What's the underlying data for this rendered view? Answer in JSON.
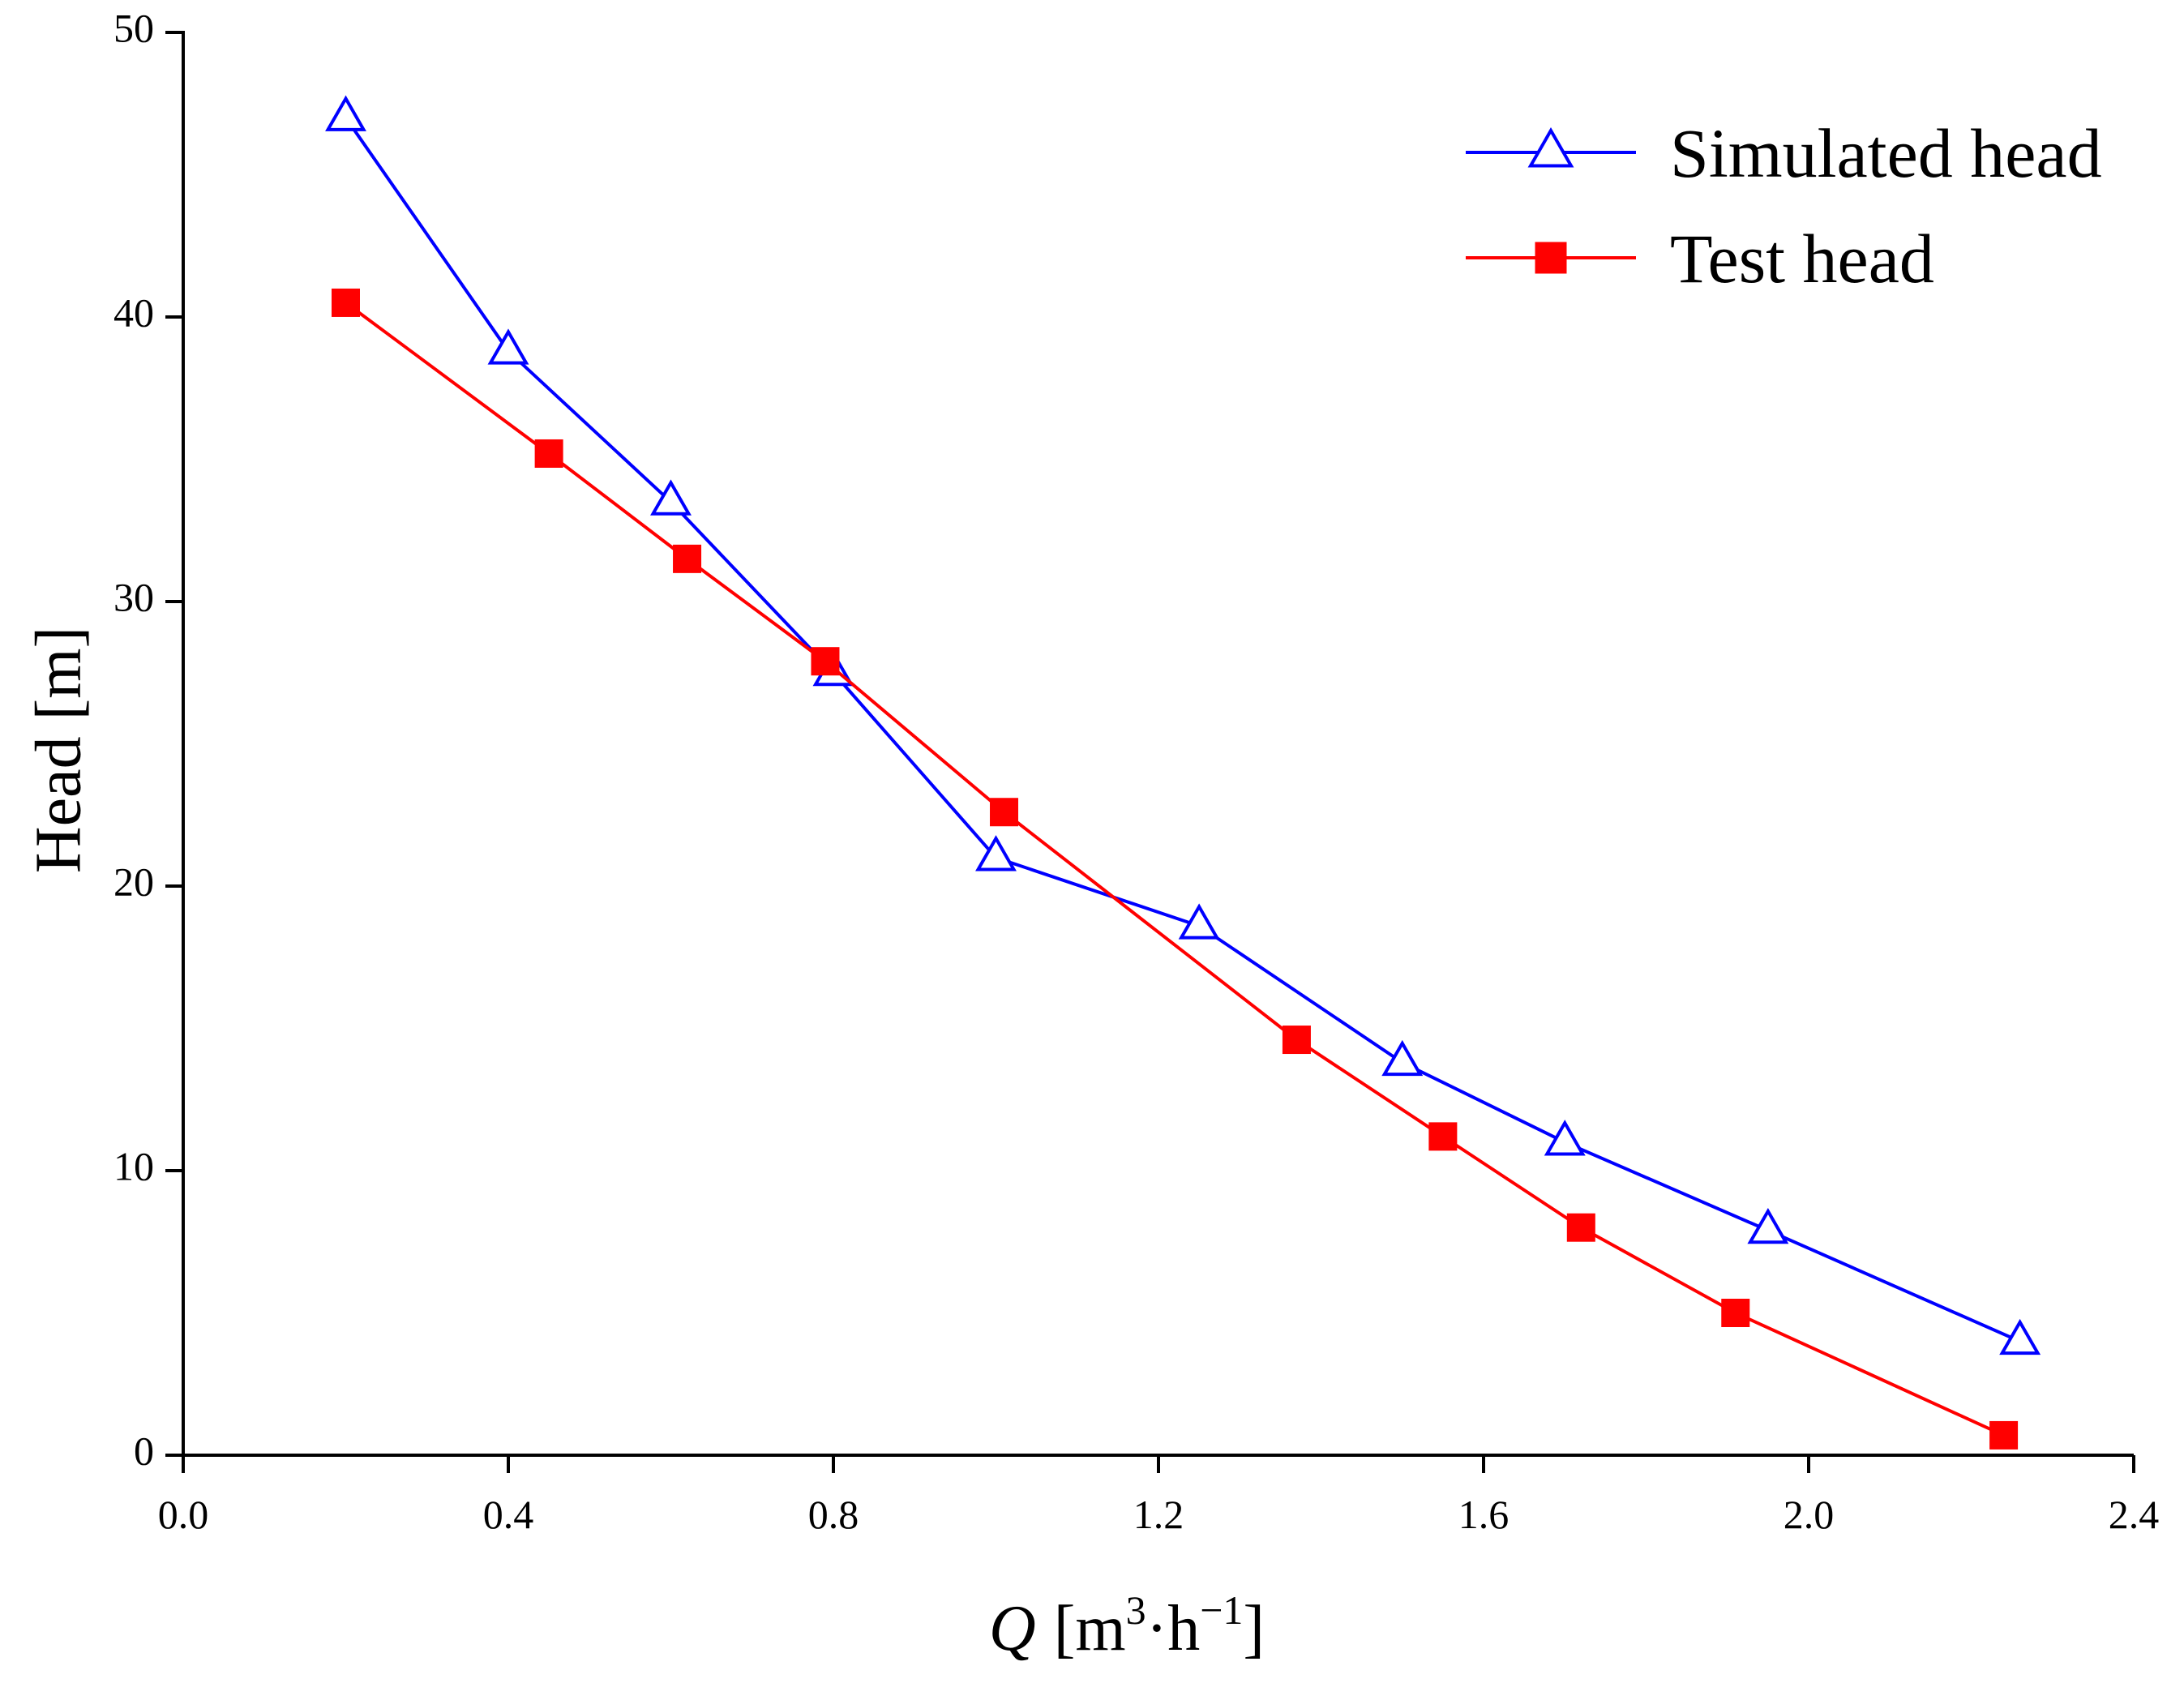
{
  "chart_data": {
    "type": "line",
    "title": "",
    "xlabel_var": "Q",
    "xlabel_unit_open": "[m",
    "xlabel_unit_sup1": "3",
    "xlabel_unit_mid": "·h",
    "xlabel_unit_sup2": "−1",
    "xlabel_unit_close": "]",
    "ylabel": "Head [m]",
    "xlim": [
      0.0,
      2.4
    ],
    "ylim": [
      0,
      50
    ],
    "xticks": [
      "0.0",
      "0.4",
      "0.8",
      "1.2",
      "1.6",
      "2.0",
      "2.4"
    ],
    "yticks": [
      "0",
      "10",
      "20",
      "30",
      "40",
      "50"
    ],
    "legend_position": "top-right",
    "series": [
      {
        "name": "Simulated head",
        "color": "#0000ff",
        "marker": "open-triangle",
        "x": [
          0.2,
          0.4,
          0.6,
          0.8,
          1.0,
          1.25,
          1.5,
          1.7,
          1.95,
          2.26
        ],
        "y": [
          47.0,
          38.8,
          33.5,
          27.5,
          21.0,
          18.6,
          13.8,
          11.0,
          7.9,
          4.0
        ]
      },
      {
        "name": "Test head",
        "color": "#ff0000",
        "marker": "filled-square",
        "x": [
          0.2,
          0.45,
          0.62,
          0.79,
          1.01,
          1.37,
          1.55,
          1.72,
          1.91,
          2.24
        ],
        "y": [
          40.5,
          35.2,
          31.5,
          27.9,
          22.6,
          14.6,
          11.2,
          8.0,
          5.0,
          0.7
        ]
      }
    ]
  }
}
